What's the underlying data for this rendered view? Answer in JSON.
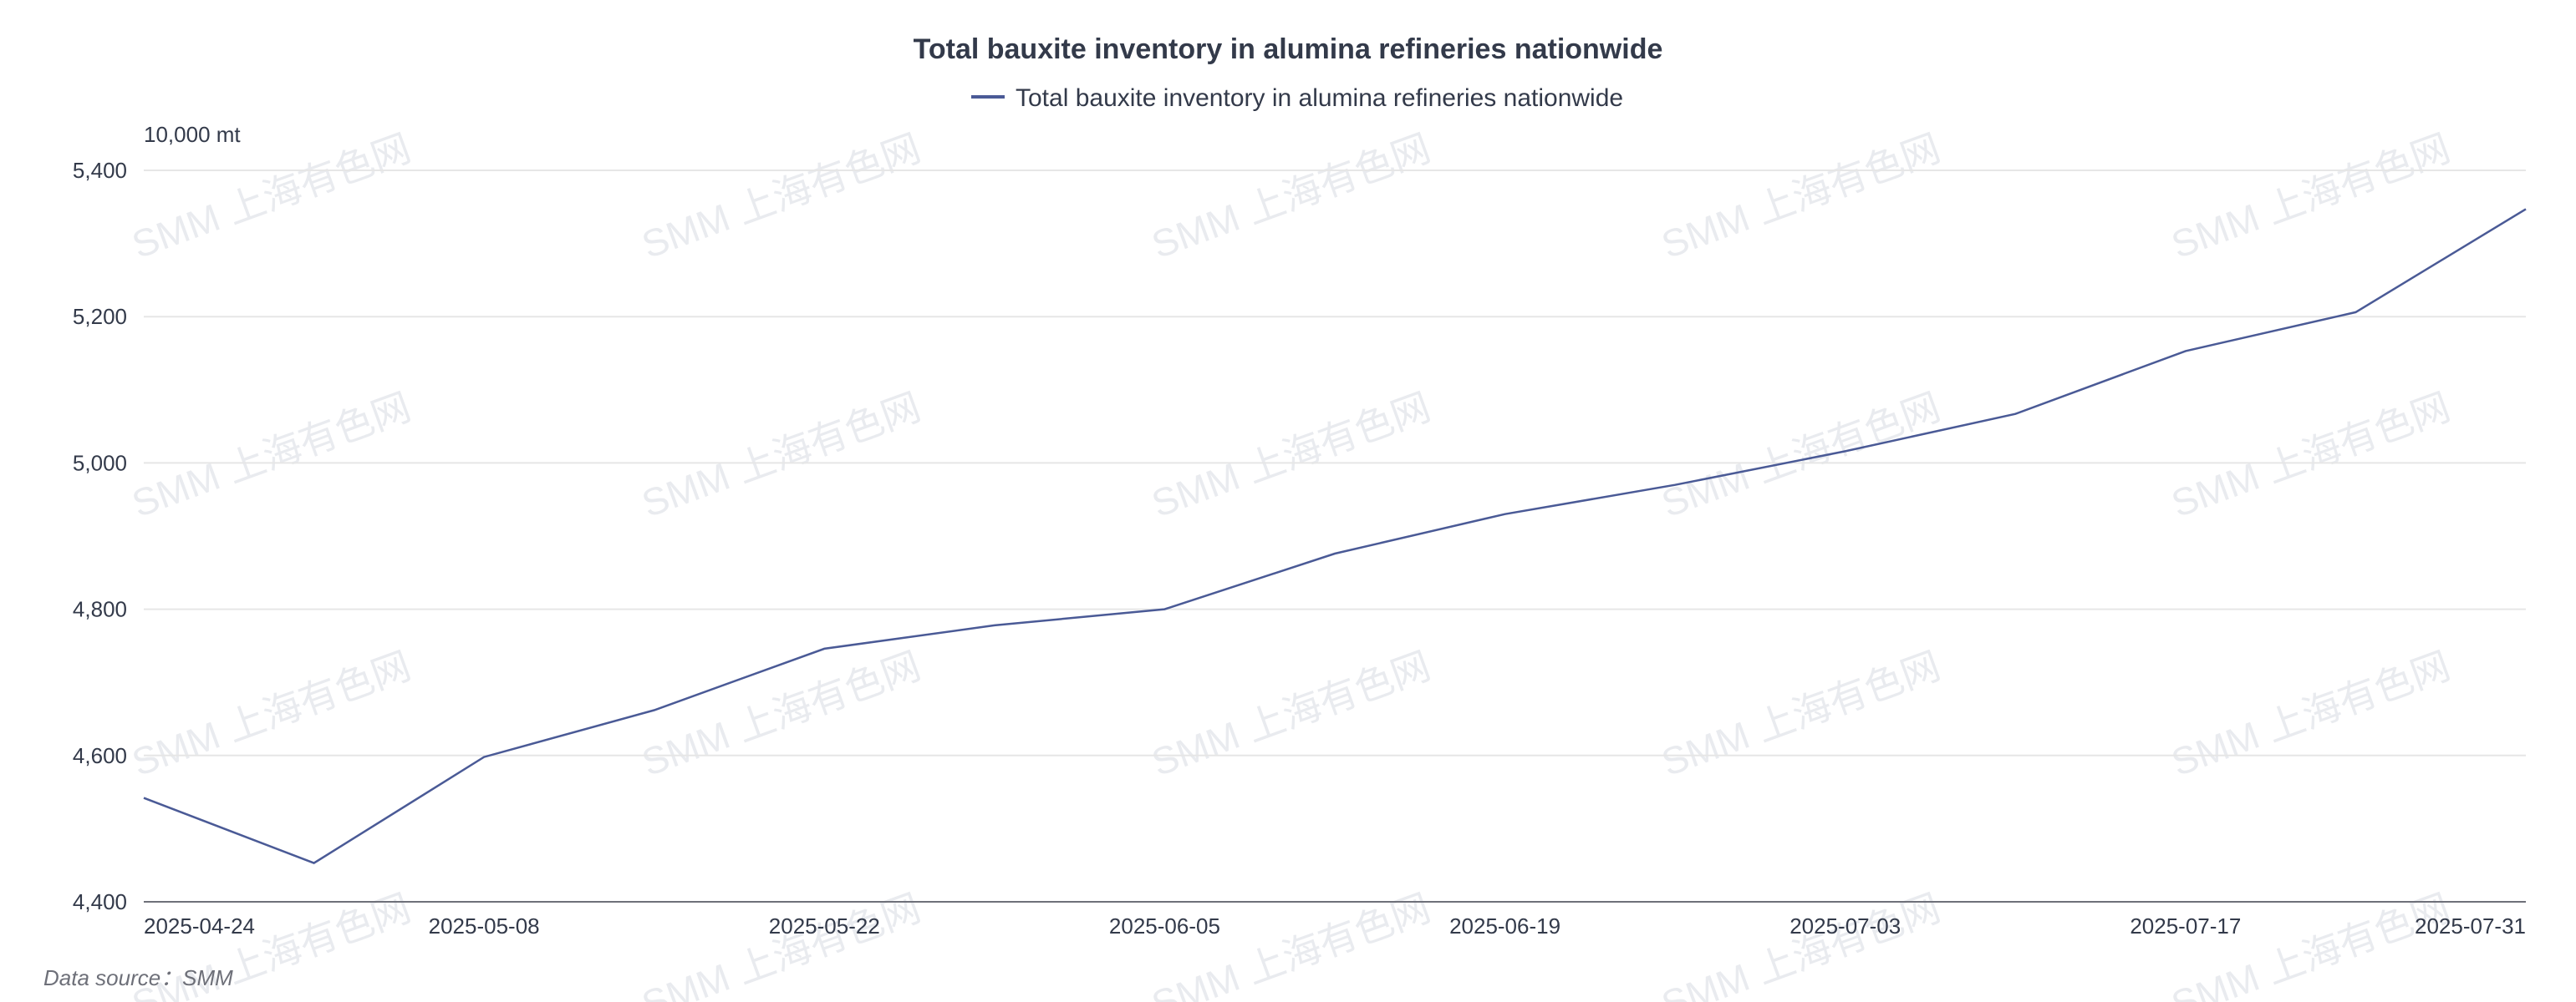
{
  "chart_data": {
    "type": "line",
    "title": "Total bauxite inventory in alumina refineries nationwide",
    "ylabel": "10,000 mt",
    "ylim": [
      4400,
      5400
    ],
    "yticks": [
      4400,
      4600,
      4800,
      5000,
      5200,
      5400
    ],
    "y_tick_labels": [
      "4,400",
      "4,600",
      "4,800",
      "5,000",
      "5,200",
      "5,400"
    ],
    "x": [
      "2025-04-24",
      "2025-05-01",
      "2025-05-08",
      "2025-05-15",
      "2025-05-22",
      "2025-05-29",
      "2025-06-05",
      "2025-06-12",
      "2025-06-19",
      "2025-06-26",
      "2025-07-03",
      "2025-07-10",
      "2025-07-17",
      "2025-07-24",
      "2025-07-31"
    ],
    "x_tick_labels": [
      "2025-04-24",
      "2025-05-08",
      "2025-05-22",
      "2025-06-05",
      "2025-06-19",
      "2025-07-03",
      "2025-07-17",
      "2025-07-31"
    ],
    "series": [
      {
        "name": "Total bauxite inventory in alumina refineries nationwide",
        "color": "#4a5a96",
        "values": [
          4542,
          4453,
          4598,
          4662,
          4746,
          4778,
          4800,
          4876,
          4930,
          4970,
          5016,
          5067,
          5153,
          5206,
          5347
        ]
      }
    ],
    "grid": true,
    "legend": "top-center"
  },
  "source_note": "Data source：SMM",
  "watermark_text": "SMM 上海有色网"
}
